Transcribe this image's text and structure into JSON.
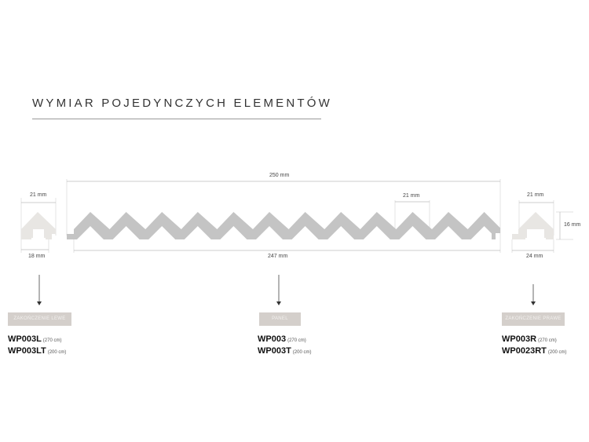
{
  "title": "WYMIAR POJEDYNCZYCH ELEMENTÓW",
  "dimensions": {
    "left_top": "21 mm",
    "left_bottom": "18 mm",
    "panel_top": "250 mm",
    "panel_bottom": "247 mm",
    "panel_pitch": "21 mm",
    "right_top": "21 mm",
    "right_height": "16 mm",
    "right_bottom": "24 mm"
  },
  "colors": {
    "panel": "#c4c4c4",
    "end_piece": "#e8e6e3",
    "badge": "#d4cfcb"
  },
  "groups": [
    {
      "badge": "ZAKOŃCZENIE LEWE",
      "codes": [
        {
          "code": "WP003L",
          "len": "(270 cm)"
        },
        {
          "code": "WP003LT",
          "len": "(200 cm)"
        }
      ]
    },
    {
      "badge": "PANEL",
      "codes": [
        {
          "code": "WP003",
          "len": "(270 cm)"
        },
        {
          "code": "WP003T",
          "len": "(200 cm)"
        }
      ]
    },
    {
      "badge": "ZAKOŃCZENIE PRAWE",
      "codes": [
        {
          "code": "WP003R",
          "len": "(270 cm)"
        },
        {
          "code": "WP0023RT",
          "len": "(200 cm)"
        }
      ]
    }
  ]
}
